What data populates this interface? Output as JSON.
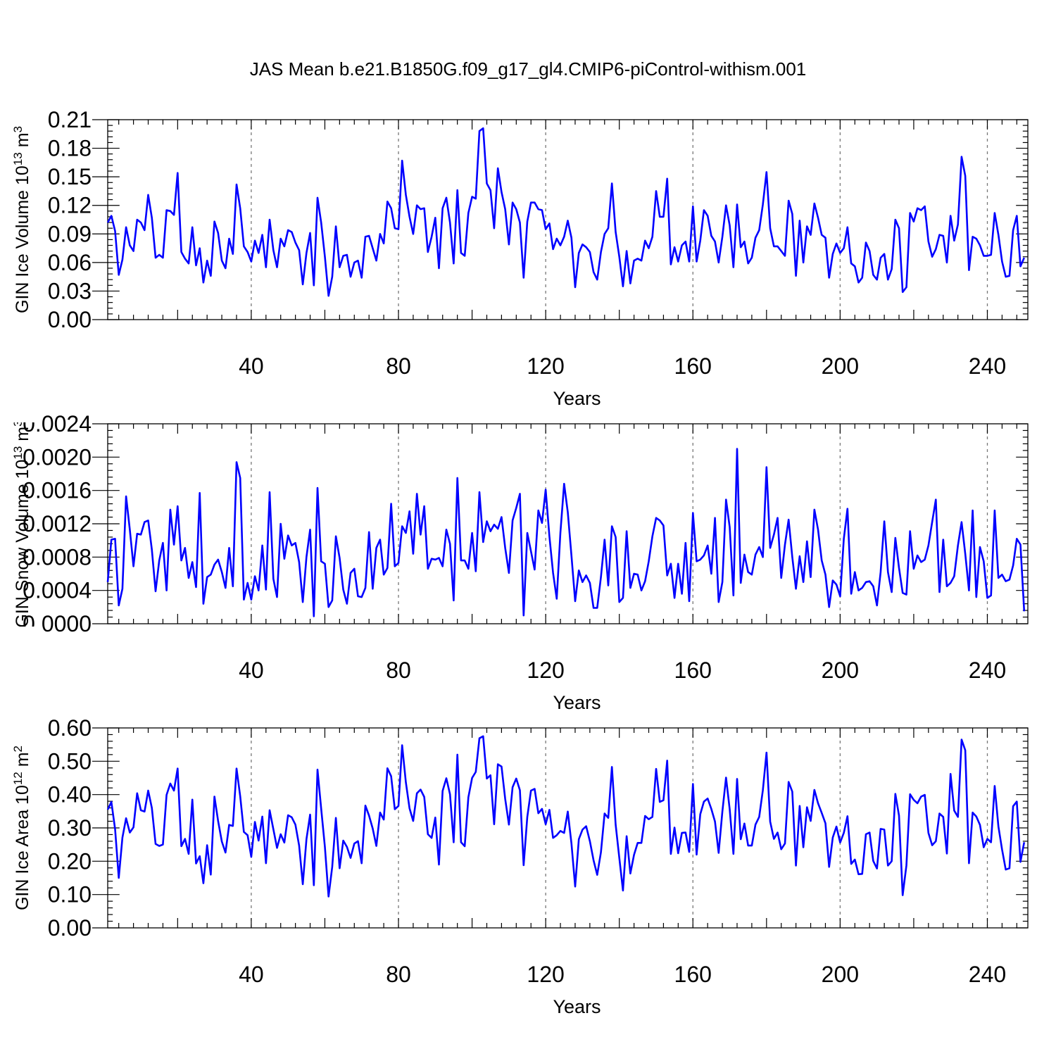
{
  "title": "JAS Mean b.e21.B1850G.f09_g17_gl4.CMIP6-piControl-withism.001",
  "colors": {
    "line": "#0000ff",
    "axis": "#000000",
    "grid": "#777777"
  },
  "chart_data": [
    {
      "type": "line",
      "ylabel": "GIN Ice Volume 10",
      "ylabel_sup": "13",
      "ylabel_unit": " m",
      "ylabel_unit_sup": "3",
      "xlabel": "Years",
      "xlim": [
        1,
        251
      ],
      "ylim": [
        0,
        0.21
      ],
      "yticks": [
        "0.00",
        "0.03",
        "0.06",
        "0.09",
        "0.12",
        "0.15",
        "0.18",
        "0.21"
      ],
      "xticks": [
        "40",
        "80",
        "120",
        "160",
        "200",
        "240"
      ],
      "grid": "vertical dashed at labeled x ticks",
      "series": [
        {
          "values": [
            0.102,
            0.109,
            0.093,
            0.047,
            0.063,
            0.097,
            0.078,
            0.072,
            0.105,
            0.102,
            0.094,
            0.131,
            0.107,
            0.065,
            0.068,
            0.065,
            0.115,
            0.114,
            0.11,
            0.154,
            0.071,
            0.064,
            0.059,
            0.097,
            0.057,
            0.075,
            0.039,
            0.062,
            0.046,
            0.103,
            0.091,
            0.062,
            0.054,
            0.085,
            0.069,
            0.142,
            0.117,
            0.077,
            0.071,
            0.061,
            0.083,
            0.07,
            0.089,
            0.055,
            0.105,
            0.073,
            0.055,
            0.085,
            0.077,
            0.094,
            0.092,
            0.081,
            0.073,
            0.037,
            0.07,
            0.091,
            0.036,
            0.128,
            0.102,
            0.066,
            0.025,
            0.045,
            0.098,
            0.055,
            0.067,
            0.068,
            0.045,
            0.06,
            0.062,
            0.044,
            0.087,
            0.088,
            0.075,
            0.062,
            0.09,
            0.08,
            0.124,
            0.117,
            0.096,
            0.095,
            0.167,
            0.131,
            0.108,
            0.09,
            0.12,
            0.116,
            0.117,
            0.071,
            0.087,
            0.107,
            0.054,
            0.117,
            0.128,
            0.102,
            0.059,
            0.136,
            0.07,
            0.067,
            0.112,
            0.129,
            0.127,
            0.198,
            0.201,
            0.143,
            0.136,
            0.096,
            0.159,
            0.134,
            0.116,
            0.079,
            0.123,
            0.116,
            0.102,
            0.044,
            0.103,
            0.123,
            0.123,
            0.116,
            0.115,
            0.095,
            0.101,
            0.074,
            0.085,
            0.078,
            0.087,
            0.104,
            0.086,
            0.034,
            0.07,
            0.079,
            0.076,
            0.071,
            0.05,
            0.042,
            0.071,
            0.09,
            0.096,
            0.143,
            0.092,
            0.066,
            0.035,
            0.072,
            0.038,
            0.062,
            0.064,
            0.062,
            0.083,
            0.075,
            0.087,
            0.135,
            0.108,
            0.108,
            0.148,
            0.058,
            0.076,
            0.061,
            0.078,
            0.082,
            0.061,
            0.119,
            0.061,
            0.083,
            0.115,
            0.109,
            0.088,
            0.082,
            0.06,
            0.087,
            0.12,
            0.099,
            0.055,
            0.121,
            0.076,
            0.082,
            0.059,
            0.065,
            0.086,
            0.094,
            0.121,
            0.155,
            0.096,
            0.077,
            0.077,
            0.072,
            0.067,
            0.125,
            0.111,
            0.046,
            0.104,
            0.06,
            0.098,
            0.089,
            0.122,
            0.107,
            0.089,
            0.086,
            0.044,
            0.069,
            0.08,
            0.07,
            0.075,
            0.097,
            0.059,
            0.056,
            0.039,
            0.044,
            0.081,
            0.072,
            0.047,
            0.042,
            0.065,
            0.069,
            0.042,
            0.053,
            0.105,
            0.096,
            0.029,
            0.034,
            0.112,
            0.103,
            0.117,
            0.115,
            0.119,
            0.082,
            0.066,
            0.074,
            0.089,
            0.088,
            0.06,
            0.109,
            0.083,
            0.1,
            0.171,
            0.151,
            0.052,
            0.087,
            0.085,
            0.078,
            0.067,
            0.067,
            0.068,
            0.112,
            0.089,
            0.061,
            0.045,
            0.046,
            0.094,
            0.109,
            0.056,
            0.065
          ]
        }
      ]
    },
    {
      "type": "line",
      "ylabel": "GIN Snow Volume 10",
      "ylabel_sup": "13",
      "ylabel_unit": " m",
      "ylabel_unit_sup": "3",
      "xlabel": "Years",
      "xlim": [
        1,
        251
      ],
      "ylim": [
        0,
        0.0024
      ],
      "yticks": [
        "0.0000",
        "0.0004",
        "0.0008",
        "0.0012",
        "0.0016",
        "0.0020",
        "0.0024"
      ],
      "xticks": [
        "40",
        "80",
        "120",
        "160",
        "200",
        "240"
      ],
      "grid": "vertical dashed at labeled x ticks",
      "series": [
        {
          "values": [
            0.0005,
            0.00101,
            0.00102,
            0.00022,
            0.00042,
            0.00153,
            0.00113,
            0.00069,
            0.00108,
            0.00107,
            0.00122,
            0.00124,
            0.00089,
            0.00039,
            0.00076,
            0.00097,
            0.0004,
            0.00137,
            0.00095,
            0.00141,
            0.00076,
            0.00091,
            0.00055,
            0.00074,
            0.00044,
            0.00157,
            0.00024,
            0.00056,
            0.00059,
            0.00071,
            0.00077,
            0.00062,
            0.00043,
            0.00091,
            0.00045,
            0.00194,
            0.00175,
            0.00029,
            0.00049,
            0.00029,
            0.00057,
            0.0004,
            0.00094,
            0.00041,
            0.00158,
            0.00054,
            0.00032,
            0.0012,
            0.00078,
            0.00106,
            0.00094,
            0.00097,
            0.00074,
            0.00026,
            0.0008,
            0.00113,
            9e-05,
            0.00163,
            0.00075,
            0.00072,
            0.0002,
            0.00028,
            0.00105,
            0.00079,
            0.00041,
            0.00024,
            0.00061,
            0.00066,
            0.00033,
            0.00032,
            0.00043,
            0.0011,
            0.00042,
            0.00091,
            0.00101,
            0.00059,
            0.00067,
            0.00144,
            0.00069,
            0.00073,
            0.00117,
            0.00109,
            0.00135,
            0.00084,
            0.00156,
            0.00107,
            0.00141,
            0.00066,
            0.00078,
            0.00077,
            0.00079,
            0.00069,
            0.00113,
            0.00096,
            0.00028,
            0.00175,
            0.00076,
            0.00076,
            0.00066,
            0.00109,
            0.00063,
            0.00158,
            0.00098,
            0.00123,
            0.00111,
            0.00119,
            0.00114,
            0.00128,
            0.00091,
            0.00061,
            0.00124,
            0.00139,
            0.00156,
            0.0001,
            0.00109,
            0.00087,
            0.00065,
            0.00136,
            0.00121,
            0.00161,
            0.00105,
            0.00061,
            0.0003,
            0.00109,
            0.00168,
            0.00134,
            0.00082,
            0.00027,
            0.00064,
            0.0005,
            0.00058,
            0.00049,
            0.00019,
            0.00019,
            0.00056,
            0.00101,
            0.00046,
            0.00117,
            0.00104,
            0.00026,
            0.00031,
            0.00111,
            0.00043,
            0.0006,
            0.00059,
            0.0004,
            0.00051,
            0.00075,
            0.00105,
            0.00127,
            0.00124,
            0.00118,
            0.00058,
            0.00072,
            0.00031,
            0.00072,
            0.00036,
            0.00097,
            0.00027,
            0.00133,
            0.00075,
            0.00077,
            0.00082,
            0.00094,
            0.0006,
            0.00127,
            0.00026,
            0.0005,
            0.00149,
            0.00116,
            0.00034,
            0.0021,
            0.00049,
            0.00083,
            0.00062,
            0.00059,
            0.00083,
            0.00092,
            0.0008,
            0.00188,
            0.00091,
            0.00107,
            0.00127,
            0.00055,
            0.00095,
            0.00125,
            0.0008,
            0.00042,
            0.00081,
            0.0005,
            0.00099,
            0.00056,
            0.00137,
            0.00113,
            0.00076,
            0.00059,
            0.0002,
            0.00052,
            0.00047,
            0.00033,
            0.00102,
            0.00138,
            0.00036,
            0.00062,
            0.0004,
            0.00043,
            0.0005,
            0.00051,
            0.00045,
            0.00022,
            0.00062,
            0.00123,
            0.00062,
            0.00038,
            0.00103,
            0.00067,
            0.00037,
            0.00035,
            0.00111,
            0.00066,
            0.00082,
            0.00074,
            0.00077,
            0.00094,
            0.00122,
            0.00149,
            0.00038,
            0.00101,
            0.00045,
            0.00049,
            0.00057,
            0.00094,
            0.00122,
            0.00084,
            0.0004,
            0.00136,
            0.00032,
            0.00092,
            0.00075,
            0.00031,
            0.00034,
            0.00136,
            0.00055,
            0.00059,
            0.00051,
            0.00053,
            0.0007,
            0.00102,
            0.00095,
            0.00015
          ]
        }
      ]
    },
    {
      "type": "line",
      "ylabel": "GIN Ice Area 10",
      "ylabel_sup": "12",
      "ylabel_unit": " m",
      "ylabel_unit_sup": "2",
      "xlabel": "Years",
      "xlim": [
        1,
        251
      ],
      "ylim": [
        0,
        0.6
      ],
      "yticks": [
        "0.00",
        "0.10",
        "0.20",
        "0.30",
        "0.40",
        "0.50",
        "0.60"
      ],
      "xticks": [
        "40",
        "80",
        "120",
        "160",
        "200",
        "240"
      ],
      "grid": "vertical dashed at labeled x ticks",
      "series": [
        {
          "values": [
            0.355,
            0.378,
            0.296,
            0.15,
            0.271,
            0.329,
            0.286,
            0.302,
            0.404,
            0.353,
            0.349,
            0.412,
            0.36,
            0.252,
            0.246,
            0.25,
            0.399,
            0.433,
            0.412,
            0.478,
            0.245,
            0.267,
            0.222,
            0.385,
            0.193,
            0.215,
            0.134,
            0.248,
            0.16,
            0.394,
            0.321,
            0.259,
            0.226,
            0.309,
            0.306,
            0.478,
            0.395,
            0.288,
            0.278,
            0.213,
            0.318,
            0.262,
            0.334,
            0.194,
            0.353,
            0.296,
            0.24,
            0.281,
            0.256,
            0.338,
            0.332,
            0.31,
            0.247,
            0.131,
            0.266,
            0.34,
            0.128,
            0.475,
            0.358,
            0.243,
            0.094,
            0.183,
            0.33,
            0.179,
            0.262,
            0.243,
            0.21,
            0.253,
            0.26,
            0.194,
            0.367,
            0.337,
            0.298,
            0.246,
            0.346,
            0.325,
            0.479,
            0.455,
            0.356,
            0.366,
            0.548,
            0.437,
            0.359,
            0.321,
            0.404,
            0.415,
            0.393,
            0.281,
            0.27,
            0.331,
            0.19,
            0.411,
            0.449,
            0.401,
            0.257,
            0.52,
            0.257,
            0.245,
            0.392,
            0.45,
            0.468,
            0.569,
            0.575,
            0.448,
            0.458,
            0.311,
            0.491,
            0.484,
            0.387,
            0.31,
            0.422,
            0.448,
            0.413,
            0.188,
            0.333,
            0.412,
            0.417,
            0.344,
            0.357,
            0.311,
            0.354,
            0.27,
            0.278,
            0.291,
            0.285,
            0.349,
            0.254,
            0.124,
            0.266,
            0.295,
            0.305,
            0.26,
            0.203,
            0.159,
            0.227,
            0.343,
            0.33,
            0.483,
            0.31,
            0.21,
            0.112,
            0.275,
            0.163,
            0.219,
            0.255,
            0.255,
            0.336,
            0.326,
            0.333,
            0.477,
            0.378,
            0.383,
            0.502,
            0.222,
            0.301,
            0.224,
            0.285,
            0.286,
            0.228,
            0.432,
            0.22,
            0.341,
            0.379,
            0.388,
            0.357,
            0.319,
            0.225,
            0.349,
            0.451,
            0.356,
            0.222,
            0.447,
            0.266,
            0.313,
            0.247,
            0.247,
            0.31,
            0.333,
            0.413,
            0.526,
            0.319,
            0.267,
            0.286,
            0.236,
            0.253,
            0.438,
            0.409,
            0.187,
            0.366,
            0.242,
            0.362,
            0.321,
            0.414,
            0.374,
            0.345,
            0.314,
            0.183,
            0.271,
            0.304,
            0.256,
            0.285,
            0.335,
            0.192,
            0.205,
            0.161,
            0.162,
            0.281,
            0.286,
            0.201,
            0.178,
            0.297,
            0.295,
            0.187,
            0.2,
            0.402,
            0.337,
            0.098,
            0.187,
            0.401,
            0.384,
            0.374,
            0.394,
            0.399,
            0.285,
            0.248,
            0.26,
            0.343,
            0.333,
            0.223,
            0.462,
            0.352,
            0.333,
            0.565,
            0.533,
            0.194,
            0.346,
            0.334,
            0.309,
            0.242,
            0.267,
            0.257,
            0.426,
            0.304,
            0.235,
            0.175,
            0.179,
            0.365,
            0.379,
            0.198,
            0.257
          ]
        }
      ]
    }
  ]
}
